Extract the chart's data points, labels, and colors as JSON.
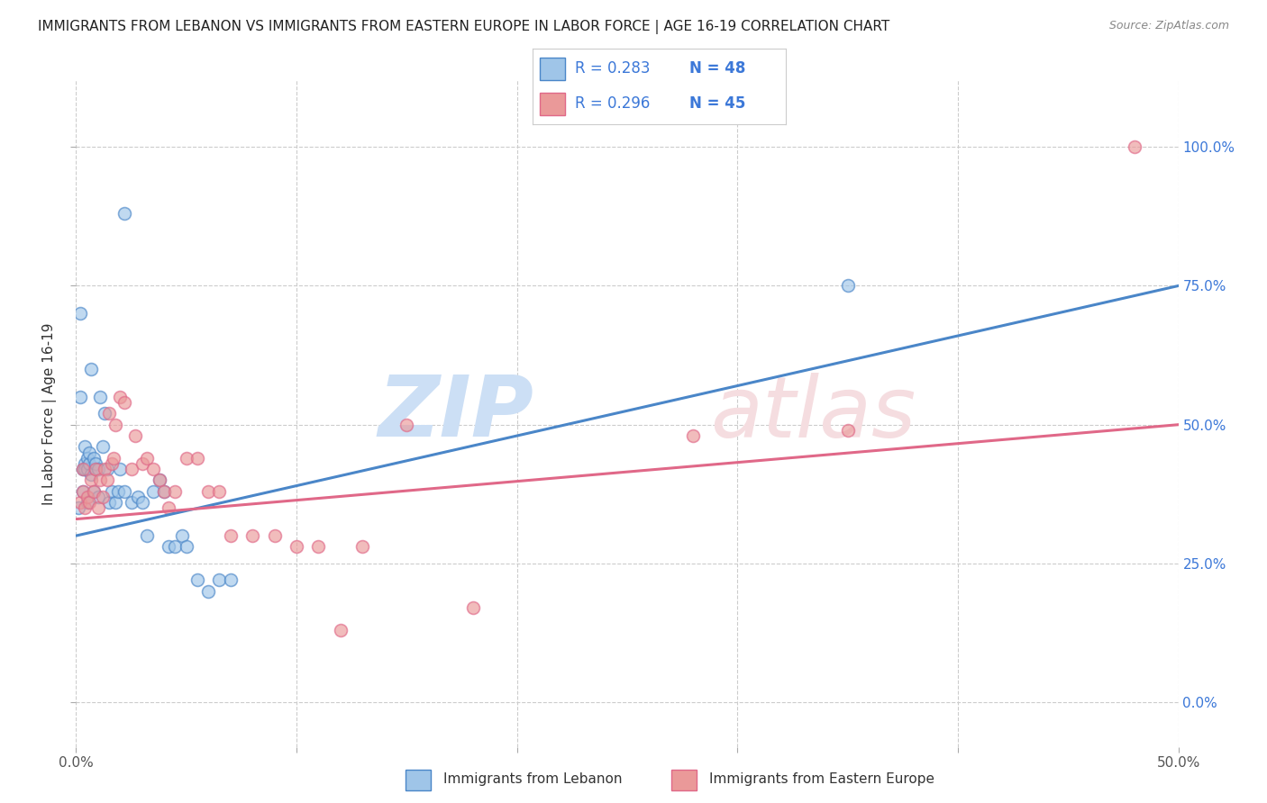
{
  "title": "IMMIGRANTS FROM LEBANON VS IMMIGRANTS FROM EASTERN EUROPE IN LABOR FORCE | AGE 16-19 CORRELATION CHART",
  "source": "Source: ZipAtlas.com",
  "xlabel_blue": "Immigrants from Lebanon",
  "xlabel_pink": "Immigrants from Eastern Europe",
  "ylabel": "In Labor Force | Age 16-19",
  "legend_blue_R": "0.283",
  "legend_blue_N": "48",
  "legend_pink_R": "0.296",
  "legend_pink_N": "45",
  "color_blue": "#9fc5e8",
  "color_pink": "#ea9999",
  "color_blue_line": "#4a86c8",
  "color_pink_line": "#e06888",
  "color_text_blue": "#3c78d8",
  "color_text_darkblue": "#1155cc",
  "xlim": [
    0.0,
    0.5
  ],
  "ylim": [
    -0.08,
    1.12
  ],
  "yticks": [
    0.0,
    0.25,
    0.5,
    0.75,
    1.0
  ],
  "ytick_labels": [
    "0.0%",
    "25.0%",
    "50.0%",
    "75.0%",
    "100.0%"
  ],
  "xtick_positions": [
    0.0,
    0.1,
    0.2,
    0.3,
    0.4,
    0.5
  ],
  "blue_x": [
    0.001,
    0.002,
    0.002,
    0.003,
    0.003,
    0.004,
    0.004,
    0.004,
    0.005,
    0.005,
    0.005,
    0.006,
    0.006,
    0.007,
    0.007,
    0.008,
    0.008,
    0.009,
    0.009,
    0.01,
    0.01,
    0.011,
    0.012,
    0.013,
    0.014,
    0.015,
    0.016,
    0.018,
    0.019,
    0.02,
    0.022,
    0.025,
    0.028,
    0.03,
    0.032,
    0.035,
    0.038,
    0.04,
    0.042,
    0.045,
    0.048,
    0.05,
    0.055,
    0.06,
    0.065,
    0.07,
    0.35,
    0.022
  ],
  "blue_y": [
    0.35,
    0.55,
    0.7,
    0.42,
    0.38,
    0.43,
    0.46,
    0.42,
    0.44,
    0.42,
    0.36,
    0.43,
    0.45,
    0.41,
    0.6,
    0.38,
    0.44,
    0.42,
    0.43,
    0.42,
    0.37,
    0.55,
    0.46,
    0.52,
    0.42,
    0.36,
    0.38,
    0.36,
    0.38,
    0.42,
    0.38,
    0.36,
    0.37,
    0.36,
    0.3,
    0.38,
    0.4,
    0.38,
    0.28,
    0.28,
    0.3,
    0.28,
    0.22,
    0.2,
    0.22,
    0.22,
    0.75,
    0.88
  ],
  "pink_x": [
    0.002,
    0.003,
    0.003,
    0.004,
    0.005,
    0.006,
    0.007,
    0.008,
    0.009,
    0.01,
    0.011,
    0.012,
    0.013,
    0.014,
    0.015,
    0.016,
    0.017,
    0.018,
    0.02,
    0.022,
    0.025,
    0.027,
    0.03,
    0.032,
    0.035,
    0.038,
    0.04,
    0.042,
    0.045,
    0.05,
    0.055,
    0.06,
    0.065,
    0.07,
    0.08,
    0.09,
    0.1,
    0.11,
    0.12,
    0.13,
    0.15,
    0.18,
    0.28,
    0.35,
    0.48
  ],
  "pink_y": [
    0.36,
    0.38,
    0.42,
    0.35,
    0.37,
    0.36,
    0.4,
    0.38,
    0.42,
    0.35,
    0.4,
    0.37,
    0.42,
    0.4,
    0.52,
    0.43,
    0.44,
    0.5,
    0.55,
    0.54,
    0.42,
    0.48,
    0.43,
    0.44,
    0.42,
    0.4,
    0.38,
    0.35,
    0.38,
    0.44,
    0.44,
    0.38,
    0.38,
    0.3,
    0.3,
    0.3,
    0.28,
    0.28,
    0.13,
    0.28,
    0.5,
    0.17,
    0.48,
    0.49,
    1.0
  ],
  "blue_line_x": [
    0.0,
    0.5
  ],
  "blue_line_y": [
    0.3,
    0.75
  ],
  "pink_line_x": [
    0.0,
    0.5
  ],
  "pink_line_y": [
    0.33,
    0.5
  ],
  "grid_color": "#cccccc",
  "background_color": "#ffffff",
  "title_fontsize": 11,
  "axis_label_fontsize": 11,
  "tick_fontsize": 11,
  "legend_fontsize": 12,
  "scatter_size": 100,
  "scatter_alpha": 0.65,
  "watermark_zip_color": "#ccdff5",
  "watermark_atlas_color": "#f5dde0"
}
